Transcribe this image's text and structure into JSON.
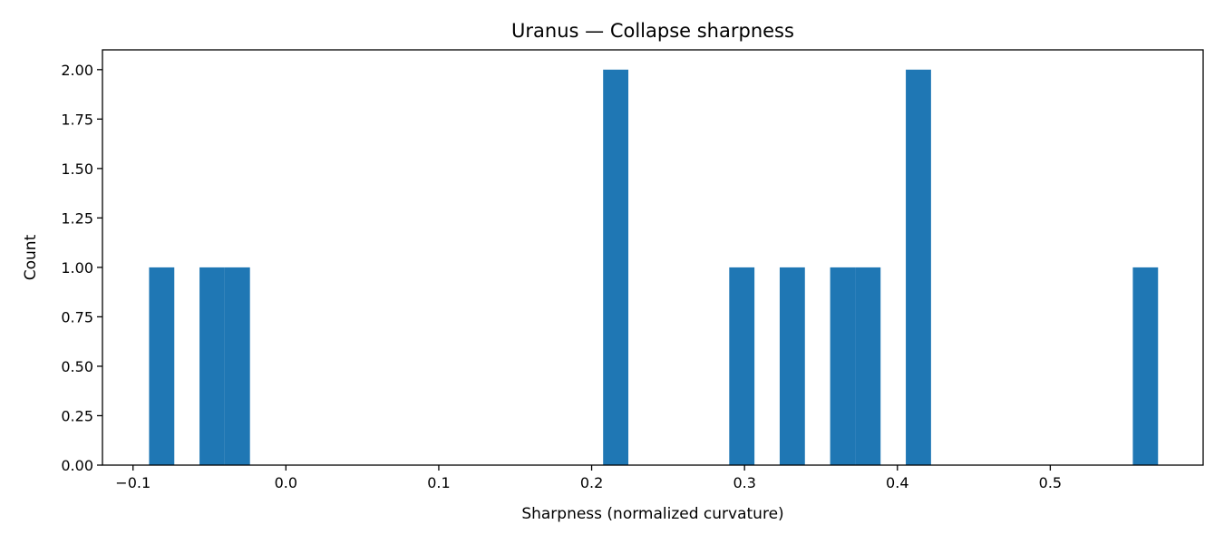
{
  "chart_data": {
    "type": "bar",
    "title": "Uranus — Collapse sharpness",
    "xlabel": "Sharpness (normalized curvature)",
    "ylabel": "Count",
    "xlim": [
      -0.12,
      0.6
    ],
    "ylim": [
      0,
      2.1
    ],
    "bin_width": 0.0165,
    "bins": [
      {
        "x0": -0.0895,
        "x1": -0.073,
        "count": 1
      },
      {
        "x0": -0.0565,
        "x1": -0.04,
        "count": 1
      },
      {
        "x0": -0.04,
        "x1": -0.0235,
        "count": 1
      },
      {
        "x0": 0.2075,
        "x1": 0.224,
        "count": 2
      },
      {
        "x0": 0.29,
        "x1": 0.3065,
        "count": 1
      },
      {
        "x0": 0.323,
        "x1": 0.3395,
        "count": 1
      },
      {
        "x0": 0.356,
        "x1": 0.3725,
        "count": 1
      },
      {
        "x0": 0.3725,
        "x1": 0.389,
        "count": 1
      },
      {
        "x0": 0.4055,
        "x1": 0.422,
        "count": 2
      },
      {
        "x0": 0.554,
        "x1": 0.5705,
        "count": 1
      }
    ],
    "x_ticks": [
      {
        "value": -0.1,
        "label": "−0.1"
      },
      {
        "value": 0.0,
        "label": "0.0"
      },
      {
        "value": 0.1,
        "label": "0.1"
      },
      {
        "value": 0.2,
        "label": "0.2"
      },
      {
        "value": 0.3,
        "label": "0.3"
      },
      {
        "value": 0.4,
        "label": "0.4"
      },
      {
        "value": 0.5,
        "label": "0.5"
      }
    ],
    "y_ticks": [
      {
        "value": 0.0,
        "label": "0.00"
      },
      {
        "value": 0.25,
        "label": "0.25"
      },
      {
        "value": 0.5,
        "label": "0.50"
      },
      {
        "value": 0.75,
        "label": "0.75"
      },
      {
        "value": 1.0,
        "label": "1.00"
      },
      {
        "value": 1.25,
        "label": "1.25"
      },
      {
        "value": 1.5,
        "label": "1.50"
      },
      {
        "value": 1.75,
        "label": "1.75"
      },
      {
        "value": 2.0,
        "label": "2.00"
      }
    ],
    "bar_color": "#1f77b4",
    "grid": false,
    "legend": "none"
  }
}
